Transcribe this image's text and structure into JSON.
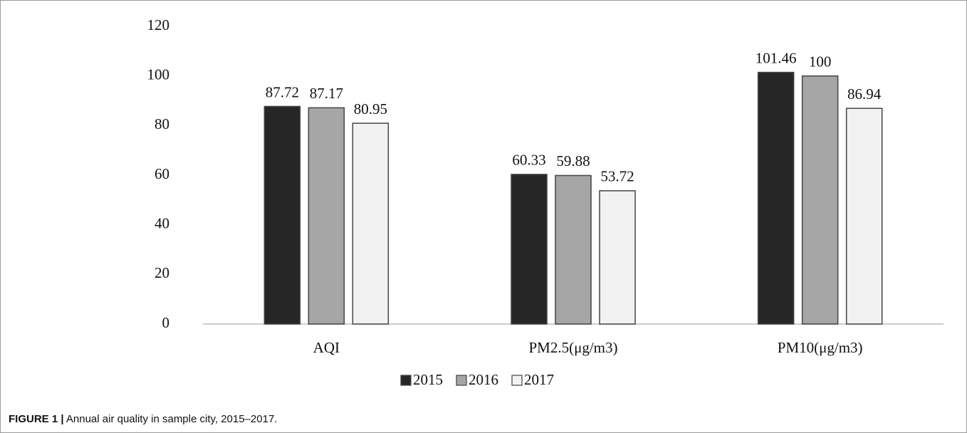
{
  "chart_data": {
    "type": "bar",
    "categories": [
      "AQI",
      "PM2.5(μg/m3)",
      "PM10(μg/m3)"
    ],
    "series": [
      {
        "name": "2015",
        "color": "#262626",
        "values": [
          87.72,
          60.33,
          101.46
        ]
      },
      {
        "name": "2016",
        "color": "#a6a6a6",
        "values": [
          87.17,
          59.88,
          100
        ]
      },
      {
        "name": "2017",
        "color": "#f2f2f2",
        "values": [
          80.95,
          53.72,
          86.94
        ]
      }
    ],
    "ylim": [
      0,
      120
    ],
    "yticks": [
      0,
      20,
      40,
      60,
      80,
      100,
      120
    ],
    "grid": false,
    "legend": "bottom"
  },
  "caption": {
    "label": "FIGURE 1 |",
    "text": "Annual air quality in sample city, 2015–2017."
  }
}
